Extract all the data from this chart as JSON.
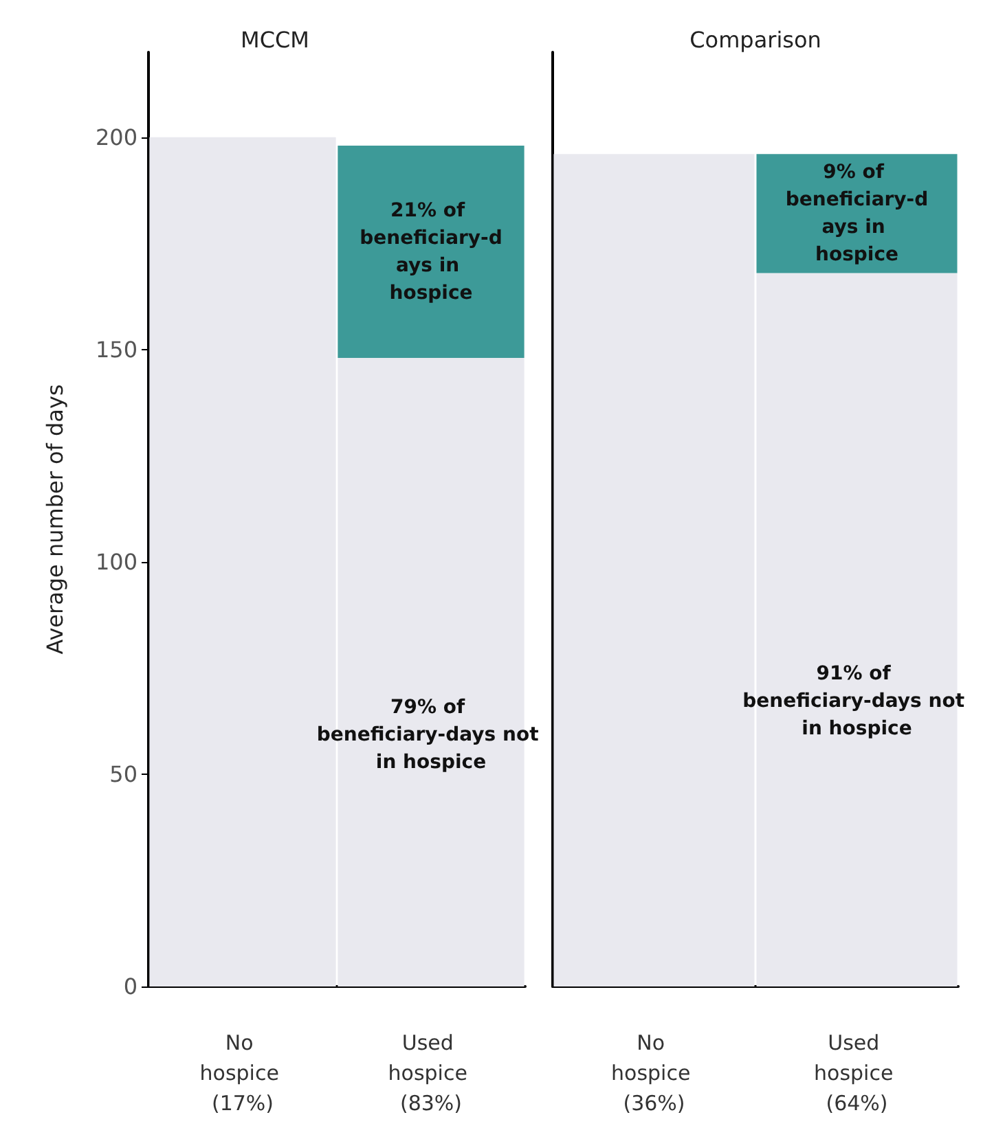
{
  "chart_data": [
    {
      "type": "bar",
      "title": "MCCM",
      "ylabel": "Average number of days",
      "categories": [
        "No hospice (17%)",
        "Used hospice (83%)"
      ],
      "stacked": true,
      "ylim": [
        0,
        220
      ],
      "yticks": [
        0,
        50,
        100,
        150,
        200
      ],
      "series": [
        {
          "color": "#e9e9ef",
          "values": [
            200,
            148
          ]
        },
        {
          "color": "#3d9a98",
          "values": [
            null,
            50
          ]
        }
      ],
      "annotations": [
        "21% of beneficiary-days in hospice",
        "79% of beneficiary-days not in hospice"
      ]
    },
    {
      "type": "bar",
      "title": "Comparison",
      "categories": [
        "No hospice (36%)",
        "Used hospice (64%)"
      ],
      "stacked": true,
      "ylim": [
        0,
        220
      ],
      "yticks": [
        0,
        50,
        100,
        150,
        200
      ],
      "tick_labels": "x",
      "series": [
        {
          "color": "#e9e9ef",
          "values": [
            196,
            168
          ]
        },
        {
          "color": "#3d9a98",
          "values": [
            null,
            28
          ]
        }
      ],
      "annotations": [
        "9% of beneficiary-days in hospice",
        "91% of beneficiary-days not in hospice"
      ]
    }
  ]
}
